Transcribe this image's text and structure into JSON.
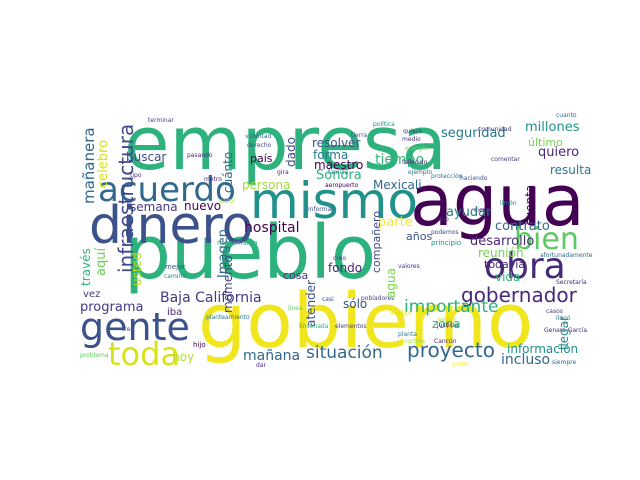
{
  "words": [
    {
      "text": "empresa",
      "color": "#2db27d"
    },
    {
      "text": "pueblo",
      "color": "#2db27d"
    },
    {
      "text": "gobierno",
      "color": "#f1e51d"
    },
    {
      "text": "agua",
      "color": "#440154"
    },
    {
      "text": "dinero",
      "color": "#3b528b"
    },
    {
      "text": "mismo",
      "color": "#21918c"
    },
    {
      "text": "acuerdo",
      "color": "#31688e"
    },
    {
      "text": "gente",
      "color": "#3b528b"
    },
    {
      "text": "obra",
      "color": "#482878"
    },
    {
      "text": "bien",
      "color": "#5ec962"
    },
    {
      "text": "toda",
      "color": "#d8e219"
    },
    {
      "text": "proyecto",
      "color": "#31688e"
    },
    {
      "text": "gobernador",
      "color": "#482878"
    },
    {
      "text": "situación",
      "color": "#31688e"
    },
    {
      "text": "importante",
      "color": "#2db27d"
    },
    {
      "text": "Baja California",
      "color": "#443983"
    },
    {
      "text": "mañana",
      "color": "#31688e"
    },
    {
      "text": "programa",
      "color": "#443983"
    },
    {
      "text": "hospital",
      "color": "#440154"
    },
    {
      "text": "tiempo",
      "color": "#35b779"
    },
    {
      "text": "seguridad",
      "color": "#2a788e"
    },
    {
      "text": "millones",
      "color": "#21918c"
    },
    {
      "text": "contrato",
      "color": "#31688e"
    },
    {
      "text": "desarrollo",
      "color": "#482878"
    },
    {
      "text": "incluso",
      "color": "#31688e"
    },
    {
      "text": "información",
      "color": "#21918c"
    },
    {
      "text": "buscar",
      "color": "#3e4989"
    },
    {
      "text": "Sonora",
      "color": "#2db27d"
    },
    {
      "text": "parte",
      "color": "#fde725"
    },
    {
      "text": "semana",
      "color": "#443983"
    },
    {
      "text": "nuevo",
      "color": "#440154"
    },
    {
      "text": "persona",
      "color": "#a0da39"
    },
    {
      "text": "resolver",
      "color": "#3b528b"
    },
    {
      "text": "forma",
      "color": "#2a788e"
    },
    {
      "text": "maestro",
      "color": "#440154"
    },
    {
      "text": "Mexicali",
      "color": "#31688e"
    },
    {
      "text": "ayudar",
      "color": "#26828e"
    },
    {
      "text": "reunión",
      "color": "#7ad151"
    },
    {
      "text": "quiero",
      "color": "#482878"
    },
    {
      "text": "resulta",
      "color": "#2a788e"
    },
    {
      "text": "último",
      "color": "#7ad151"
    },
    {
      "text": "fondo",
      "color": "#482878"
    },
    {
      "text": "cosa",
      "color": "#443983"
    },
    {
      "text": "hoy",
      "color": "#b5de2b"
    },
    {
      "text": "todavía",
      "color": "#482878"
    },
    {
      "text": "vida",
      "color": "#2db27d"
    },
    {
      "text": "zona",
      "color": "#2db27d"
    },
    {
      "text": "años",
      "color": "#3b528b"
    },
    {
      "text": "país",
      "color": "#440154"
    },
    {
      "text": "sólo",
      "color": "#3b528b"
    },
    {
      "text": "iba",
      "color": "#482878"
    },
    {
      "text": "vez",
      "color": "#443983"
    },
    {
      "text": "hijo",
      "color": "#440154"
    },
    {
      "text": "dar",
      "color": "#482878"
    },
    {
      "text": "poder",
      "color": "#fde725"
    },
    {
      "text": "siempre",
      "color": "#31688e"
    },
    {
      "text": "problema",
      "color": "#5ec962"
    },
    {
      "text": "terminar",
      "color": "#414487"
    },
    {
      "text": "política",
      "color": "#21918c"
    },
    {
      "text": "aeropuerto",
      "color": "#440154"
    },
    {
      "text": "planteamiento",
      "color": "#2a788e"
    },
    {
      "text": "mecanismo",
      "color": "#2db27d"
    },
    {
      "text": "Ensenada",
      "color": "#2db27d"
    },
    {
      "text": "mejor",
      "color": "#3b528b"
    },
    {
      "text": "médico",
      "color": "#d8e219"
    },
    {
      "text": "pobladores",
      "color": "#433e85"
    },
    {
      "text": "principio",
      "color": "#21918c"
    },
    {
      "text": "valores",
      "color": "#443983"
    },
    {
      "text": "afortunadamente",
      "color": "#31688e"
    },
    {
      "text": "Genaro García",
      "color": "#482878"
    },
    {
      "text": "justicia",
      "color": "#482878"
    },
    {
      "text": "elementos",
      "color": "#414487"
    },
    {
      "text": "Cancún",
      "color": "#482878"
    },
    {
      "text": "seguir",
      "color": "#b5de2b"
    },
    {
      "text": "Secretaría",
      "color": "#482878"
    },
    {
      "text": "llegó",
      "color": "#2a788e"
    },
    {
      "text": "línea",
      "color": "#5ec962"
    },
    {
      "text": "dijo",
      "color": "#482878"
    },
    {
      "text": "planta",
      "color": "#2a788e"
    },
    {
      "text": "casi",
      "color": "#3e4989"
    },
    {
      "text": "medio",
      "color": "#472c7a"
    },
    {
      "text": "tierra",
      "color": "#3b528b"
    },
    {
      "text": "quiere",
      "color": "#443983"
    },
    {
      "text": "ejemplo",
      "color": "#31688e"
    },
    {
      "text": "derecho",
      "color": "#3e4989"
    },
    {
      "text": "informar",
      "color": "#3b528b"
    },
    {
      "text": "protección",
      "color": "#2a788e"
    },
    {
      "text": "energía",
      "color": "#7ad151"
    },
    {
      "text": "fallecido",
      "color": "#482878"
    },
    {
      "text": "familia",
      "color": "#26828e"
    },
    {
      "text": "metro",
      "color": "#482878"
    },
    {
      "text": "gira",
      "color": "#482878"
    },
    {
      "text": "cuanto",
      "color": "#31688e"
    },
    {
      "text": "tipo",
      "color": "#472c7a"
    },
    {
      "text": "partir",
      "color": "#b5de2b"
    },
    {
      "text": "tren",
      "color": "#3b528b"
    },
    {
      "text": "comunidad",
      "color": "#414487"
    },
    {
      "text": "creo",
      "color": "#443983"
    },
    {
      "text": "cierto",
      "color": "#482878"
    },
    {
      "text": "podemos",
      "color": "#3e4989"
    },
    {
      "text": "camino",
      "color": "#26828e"
    },
    {
      "text": "haciendo",
      "color": "#3b528b"
    },
    {
      "text": "casos",
      "color": "#443983"
    },
    {
      "text": "voluntad",
      "color": "#31688e"
    },
    {
      "text": "limón",
      "color": "#2a788e"
    },
    {
      "text": "pasando",
      "color": "#482878"
    },
    {
      "text": "cortina",
      "color": "#a0da39"
    },
    {
      "text": "comentar",
      "color": "#443983"
    },
    {
      "text": "infraestructura",
      "color": "#3e4989"
    },
    {
      "text": "mañanera",
      "color": "#31688e"
    },
    {
      "text": "celebro",
      "color": "#d8e219"
    },
    {
      "text": "usted",
      "color": "#b5de2b"
    },
    {
      "text": "aquí",
      "color": "#6ece58"
    },
    {
      "text": "través",
      "color": "#2db27d"
    },
    {
      "text": "cuánto",
      "color": "#31688e"
    },
    {
      "text": "dado",
      "color": "#3e4989"
    },
    {
      "text": "agua",
      "color": "#7ad151"
    },
    {
      "text": "atender",
      "color": "#3b528b"
    },
    {
      "text": "momento",
      "color": "#414487"
    },
    {
      "text": "Imagen",
      "color": "#31688e"
    },
    {
      "text": "cuenta",
      "color": "#440154"
    },
    {
      "text": "compañero",
      "color": "#3e4989"
    },
    {
      "text": "llegar",
      "color": "#26828e"
    }
  ]
}
